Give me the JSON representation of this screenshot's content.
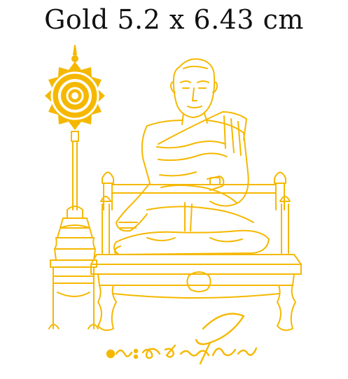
{
  "title": "Gold 5.2 x 6.43 cm",
  "colors": {
    "gold": "#F5B800",
    "text": "#111111",
    "background": "#FFFFFF"
  },
  "artwork": {
    "subject": "seated-monk-on-throne-line-art",
    "ornament": "sun-lotus-emblem-on-stand",
    "signature": "handwritten-thai-signature"
  }
}
